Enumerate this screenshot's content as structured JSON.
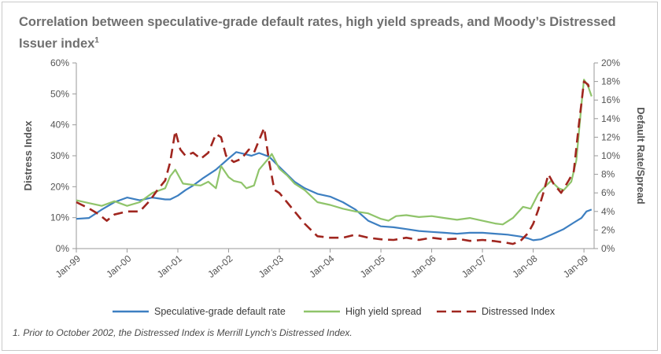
{
  "title_main": "Correlation between speculative-grade default rates, high yield spreads, and Moody’s Distressed Issuer index",
  "title_sup": "1",
  "footnote": "1. Prior to October 2002, the Distressed Index is Merrill Lynch’s Distressed Index.",
  "colors": {
    "default_rate": "#3d7fc1",
    "high_yield": "#8fc46a",
    "distressed": "#a0261f",
    "axis": "#9a9a9a",
    "text": "#555555"
  },
  "chart_data": {
    "type": "line",
    "title": "Correlation between speculative-grade default rates, high yield spreads, and Moody’s Distressed Issuer index",
    "xlabel": "",
    "ylabel": "Distress Index",
    "y2label": "Default Rate/Spread",
    "xlim": [
      1999.0,
      2009.2
    ],
    "ylim": [
      0,
      60
    ],
    "y2lim": [
      0,
      20
    ],
    "x_ticks": [
      1999,
      2000,
      2001,
      2002,
      2003,
      2004,
      2005,
      2006,
      2007,
      2008,
      2009
    ],
    "x_tick_labels": [
      "Jan-99",
      "Jan-00",
      "Jan-01",
      "Jan-02",
      "Jan-03",
      "Jan-04",
      "Jan-05",
      "Jan-06",
      "Jan-07",
      "Jan-08",
      "Jan-09"
    ],
    "y_ticks": [
      0,
      10,
      20,
      30,
      40,
      50,
      60
    ],
    "y_tick_labels": [
      "0%",
      "10%",
      "20%",
      "30%",
      "40%",
      "50%",
      "60%"
    ],
    "y2_ticks": [
      0,
      2,
      4,
      6,
      8,
      10,
      12,
      14,
      16,
      18,
      20
    ],
    "y2_tick_labels": [
      "0%",
      "2%",
      "4%",
      "6%",
      "8%",
      "10%",
      "12%",
      "14%",
      "16%",
      "18%",
      "20%"
    ],
    "grid": false,
    "legend_position": "bottom",
    "series": [
      {
        "name": "Speculative-grade default rate",
        "axis": "right",
        "style": "solid",
        "points": [
          [
            1999.0,
            3.2
          ],
          [
            1999.25,
            3.3
          ],
          [
            1999.5,
            4.2
          ],
          [
            1999.75,
            5.0
          ],
          [
            2000.0,
            5.5
          ],
          [
            2000.25,
            5.2
          ],
          [
            2000.5,
            5.5
          ],
          [
            2000.75,
            5.3
          ],
          [
            2000.85,
            5.3
          ],
          [
            2001.0,
            5.7
          ],
          [
            2001.15,
            6.3
          ],
          [
            2001.3,
            6.8
          ],
          [
            2001.5,
            7.6
          ],
          [
            2001.75,
            8.5
          ],
          [
            2002.0,
            9.7
          ],
          [
            2002.15,
            10.4
          ],
          [
            2002.3,
            10.2
          ],
          [
            2002.45,
            10.0
          ],
          [
            2002.6,
            10.3
          ],
          [
            2002.8,
            9.9
          ],
          [
            2003.0,
            8.8
          ],
          [
            2003.3,
            7.2
          ],
          [
            2003.5,
            6.5
          ],
          [
            2003.75,
            5.9
          ],
          [
            2004.0,
            5.6
          ],
          [
            2004.25,
            5.0
          ],
          [
            2004.5,
            4.2
          ],
          [
            2004.75,
            3.0
          ],
          [
            2005.0,
            2.4
          ],
          [
            2005.25,
            2.3
          ],
          [
            2005.5,
            2.1
          ],
          [
            2005.75,
            1.9
          ],
          [
            2006.0,
            1.8
          ],
          [
            2006.25,
            1.7
          ],
          [
            2006.5,
            1.6
          ],
          [
            2006.75,
            1.7
          ],
          [
            2007.0,
            1.7
          ],
          [
            2007.25,
            1.6
          ],
          [
            2007.5,
            1.5
          ],
          [
            2007.75,
            1.3
          ],
          [
            2007.9,
            1.1
          ],
          [
            2008.0,
            0.9
          ],
          [
            2008.15,
            1.0
          ],
          [
            2008.4,
            1.6
          ],
          [
            2008.6,
            2.1
          ],
          [
            2008.8,
            2.8
          ],
          [
            2008.95,
            3.3
          ],
          [
            2009.05,
            4.0
          ],
          [
            2009.15,
            4.2
          ]
        ]
      },
      {
        "name": "High yield spread",
        "axis": "right",
        "style": "solid",
        "points": [
          [
            1999.0,
            5.2
          ],
          [
            1999.25,
            4.9
          ],
          [
            1999.5,
            4.6
          ],
          [
            1999.75,
            5.1
          ],
          [
            2000.0,
            4.6
          ],
          [
            2000.25,
            5.0
          ],
          [
            2000.5,
            6.0
          ],
          [
            2000.75,
            6.5
          ],
          [
            2000.85,
            7.8
          ],
          [
            2000.95,
            8.5
          ],
          [
            2001.1,
            7.0
          ],
          [
            2001.25,
            6.9
          ],
          [
            2001.45,
            6.8
          ],
          [
            2001.6,
            7.2
          ],
          [
            2001.75,
            6.5
          ],
          [
            2001.85,
            8.9
          ],
          [
            2002.0,
            7.7
          ],
          [
            2002.1,
            7.3
          ],
          [
            2002.25,
            7.1
          ],
          [
            2002.35,
            6.5
          ],
          [
            2002.5,
            6.8
          ],
          [
            2002.6,
            8.5
          ],
          [
            2002.8,
            9.8
          ],
          [
            2002.85,
            10.2
          ],
          [
            2003.0,
            8.6
          ],
          [
            2003.15,
            7.9
          ],
          [
            2003.3,
            7.0
          ],
          [
            2003.5,
            6.3
          ],
          [
            2003.75,
            5.0
          ],
          [
            2004.0,
            4.7
          ],
          [
            2004.25,
            4.3
          ],
          [
            2004.5,
            4.0
          ],
          [
            2004.75,
            3.8
          ],
          [
            2005.0,
            3.2
          ],
          [
            2005.15,
            3.0
          ],
          [
            2005.3,
            3.5
          ],
          [
            2005.5,
            3.6
          ],
          [
            2005.75,
            3.4
          ],
          [
            2006.0,
            3.5
          ],
          [
            2006.25,
            3.3
          ],
          [
            2006.5,
            3.1
          ],
          [
            2006.75,
            3.3
          ],
          [
            2007.0,
            3.0
          ],
          [
            2007.25,
            2.7
          ],
          [
            2007.4,
            2.6
          ],
          [
            2007.6,
            3.3
          ],
          [
            2007.8,
            4.5
          ],
          [
            2007.95,
            4.3
          ],
          [
            2008.1,
            5.9
          ],
          [
            2008.2,
            6.5
          ],
          [
            2008.35,
            7.3
          ],
          [
            2008.5,
            6.5
          ],
          [
            2008.6,
            6.3
          ],
          [
            2008.75,
            7.2
          ],
          [
            2008.85,
            9.5
          ],
          [
            2008.95,
            15.5
          ],
          [
            2009.0,
            18.2
          ],
          [
            2009.08,
            17.5
          ],
          [
            2009.15,
            16.4
          ]
        ]
      },
      {
        "name": "Distressed Index",
        "axis": "left",
        "style": "dashed",
        "points": [
          [
            1999.0,
            15.0
          ],
          [
            1999.25,
            13.0
          ],
          [
            1999.45,
            11.0
          ],
          [
            1999.6,
            9.0
          ],
          [
            1999.75,
            11.0
          ],
          [
            2000.0,
            12.0
          ],
          [
            2000.25,
            12.0
          ],
          [
            2000.45,
            15.5
          ],
          [
            2000.6,
            19.0
          ],
          [
            2000.75,
            22.0
          ],
          [
            2000.85,
            28.0
          ],
          [
            2000.95,
            38.0
          ],
          [
            2001.05,
            32.0
          ],
          [
            2001.15,
            30.0
          ],
          [
            2001.3,
            31.0
          ],
          [
            2001.45,
            29.0
          ],
          [
            2001.6,
            31.0
          ],
          [
            2001.75,
            37.0
          ],
          [
            2001.85,
            36.0
          ],
          [
            2001.95,
            30.0
          ],
          [
            2002.1,
            28.0
          ],
          [
            2002.25,
            29.0
          ],
          [
            2002.4,
            32.0
          ],
          [
            2002.5,
            31.0
          ],
          [
            2002.6,
            35.0
          ],
          [
            2002.7,
            39.0
          ],
          [
            2002.8,
            28.0
          ],
          [
            2002.9,
            19.0
          ],
          [
            2003.0,
            18.0
          ],
          [
            2003.15,
            15.0
          ],
          [
            2003.3,
            12.0
          ],
          [
            2003.5,
            8.0
          ],
          [
            2003.75,
            4.0
          ],
          [
            2004.0,
            3.5
          ],
          [
            2004.25,
            3.5
          ],
          [
            2004.5,
            4.5
          ],
          [
            2004.75,
            3.5
          ],
          [
            2005.0,
            3.0
          ],
          [
            2005.25,
            2.8
          ],
          [
            2005.5,
            3.5
          ],
          [
            2005.75,
            2.8
          ],
          [
            2006.0,
            3.5
          ],
          [
            2006.25,
            3.0
          ],
          [
            2006.5,
            3.2
          ],
          [
            2006.75,
            2.5
          ],
          [
            2007.0,
            2.8
          ],
          [
            2007.25,
            2.4
          ],
          [
            2007.5,
            1.8
          ],
          [
            2007.6,
            1.5
          ],
          [
            2007.75,
            2.5
          ],
          [
            2007.9,
            5.0
          ],
          [
            2008.0,
            8.0
          ],
          [
            2008.1,
            12.5
          ],
          [
            2008.2,
            18.0
          ],
          [
            2008.3,
            24.0
          ],
          [
            2008.4,
            21.0
          ],
          [
            2008.55,
            18.0
          ],
          [
            2008.7,
            22.0
          ],
          [
            2008.8,
            25.0
          ],
          [
            2008.9,
            40.0
          ],
          [
            2008.95,
            47.0
          ],
          [
            2009.0,
            54.0
          ],
          [
            2009.08,
            53.0
          ],
          [
            2009.12,
            51.0
          ]
        ]
      }
    ]
  }
}
